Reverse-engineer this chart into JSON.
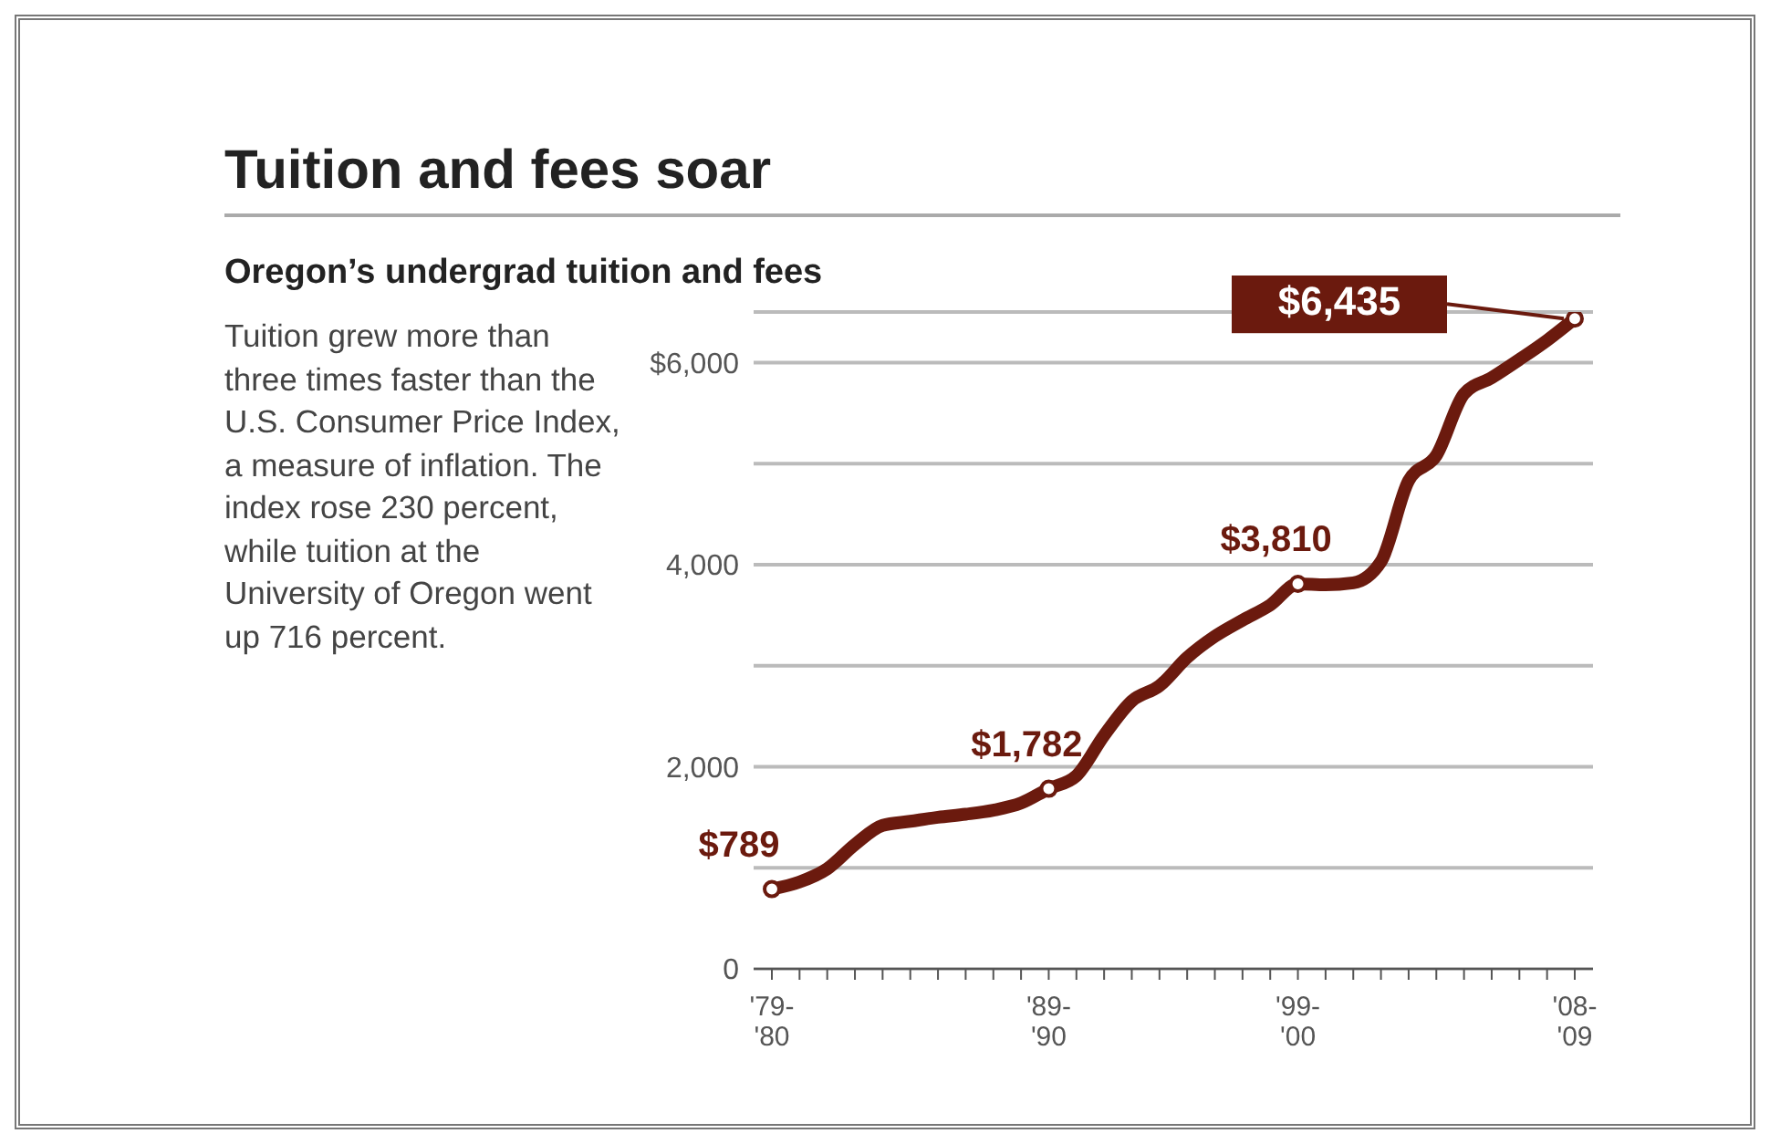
{
  "chart_data": {
    "type": "line",
    "title": "Tuition and fees soar",
    "subtitle": "Oregon’s undergrad tuition and fees",
    "annotations": [
      "Tuition grew more than three times faster than the U.S. Consumer Price Index, a measure of inflation. The index rose 230 percent, while tuition at the University of Oregon went up 716 percent."
    ],
    "categories": [
      "'79-'80",
      null,
      null,
      null,
      null,
      null,
      null,
      null,
      null,
      null,
      "'89-'90",
      null,
      null,
      null,
      null,
      null,
      null,
      null,
      null,
      "'99-'00",
      null,
      null,
      null,
      null,
      null,
      null,
      null,
      null,
      null,
      "'08-'09"
    ],
    "series": [
      {
        "color": "#6b1a0e",
        "values": [
          789,
          860,
          990,
          1230,
          1420,
          1460,
          1500,
          1530,
          1570,
          1640,
          1782,
          1910,
          2310,
          2650,
          2800,
          3080,
          3290,
          3450,
          3600,
          3810,
          3800,
          3820,
          4030,
          4830,
          5080,
          5690,
          5850,
          6030,
          6220,
          6435
        ],
        "value_labels": [
          "$789",
          null,
          null,
          null,
          null,
          null,
          null,
          null,
          null,
          null,
          "$1,782",
          null,
          null,
          null,
          null,
          null,
          null,
          null,
          null,
          "$3,810",
          null,
          null,
          null,
          null,
          null,
          null,
          null,
          null,
          null,
          "$6,435"
        ]
      }
    ],
    "ylim": [
      0,
      6500
    ],
    "yticks": [
      0,
      {
        "value": 1000,
        "label": null
      },
      {
        "value": 2000,
        "label": "2,000"
      },
      {
        "value": 3000,
        "label": null
      },
      {
        "value": 4000,
        "label": "4,000"
      },
      {
        "value": 5000,
        "label": null
      },
      {
        "value": 6000,
        "label": "$6,000"
      }
    ],
    "grid": "y"
  }
}
